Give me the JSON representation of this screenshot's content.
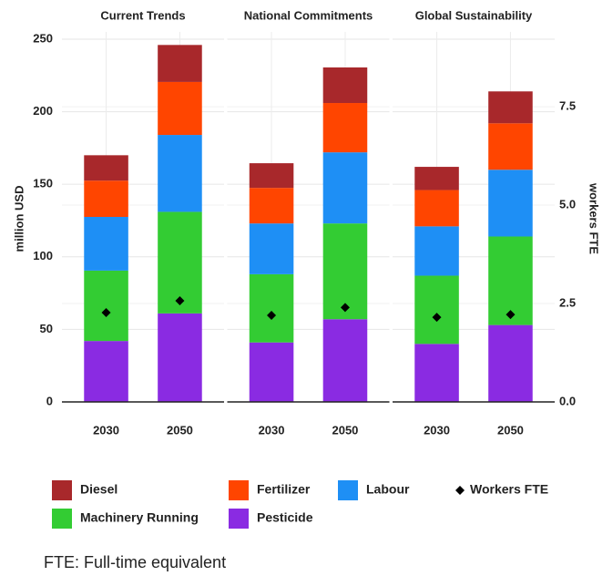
{
  "chart_data": {
    "type": "bar",
    "stacked": true,
    "facets": [
      "Current Trends",
      "National Commitments",
      "Global Sustainability"
    ],
    "categories": [
      [
        "2030",
        "2050"
      ],
      [
        "2030",
        "2050"
      ],
      [
        "2030",
        "2050"
      ]
    ],
    "y_label": "million USD",
    "y2_label": "workers FTE",
    "ylim": [
      0,
      255
    ],
    "yticks": [
      0,
      50,
      100,
      150,
      200,
      250
    ],
    "y2lim": [
      0,
      9.4
    ],
    "y2ticks": [
      {
        "value": 0,
        "label": "0.0"
      },
      2.5,
      {
        "value": 5,
        "label": "5.0"
      },
      7.5
    ],
    "grid": true,
    "legend": "bottom",
    "series": [
      {
        "name": "Diesel",
        "color": "#a8282b",
        "values": [
          [
            17.5,
            25.5
          ],
          [
            17,
            24.5
          ],
          [
            16,
            22
          ]
        ]
      },
      {
        "name": "Fertilizer",
        "color": "#ff4500",
        "values": [
          [
            25,
            36.5
          ],
          [
            24.5,
            34
          ],
          [
            25,
            32
          ]
        ]
      },
      {
        "name": "Labour",
        "color": "#1e8ff5",
        "values": [
          [
            37,
            53
          ],
          [
            35,
            49
          ],
          [
            34,
            46
          ]
        ]
      },
      {
        "name": "Workers FTE",
        "type": "point",
        "axis": "y2",
        "color": "#000000",
        "values": [
          [
            2.27,
            2.57
          ],
          [
            2.2,
            2.4
          ],
          [
            2.15,
            2.22
          ]
        ]
      },
      {
        "name": "Machinery Running",
        "color": "#33cc33",
        "values": [
          [
            48.5,
            70
          ],
          [
            47,
            66
          ],
          [
            47,
            61
          ]
        ]
      },
      {
        "name": "Pesticide",
        "color": "#8a2be2",
        "values": [
          [
            42,
            61
          ],
          [
            41,
            57
          ],
          [
            40,
            53
          ]
        ]
      }
    ],
    "caption": "FTE: Full-time equivalent"
  }
}
